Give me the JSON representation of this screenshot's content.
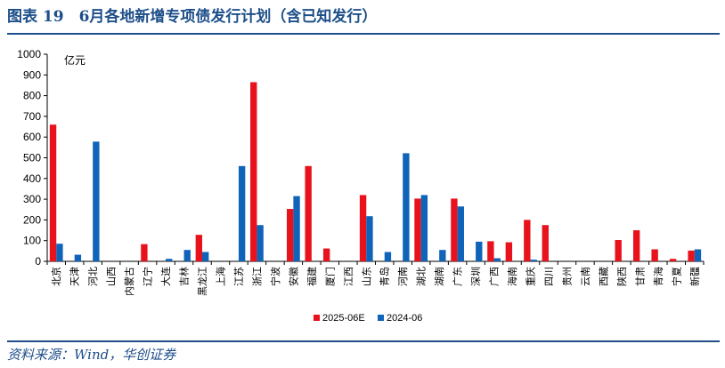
{
  "header": {
    "title": "图表 19　6月各地新增专项债发行计划（含已知发行）"
  },
  "footer": {
    "source": "资料来源：Wind，华创证券"
  },
  "colors": {
    "series_2025": "#e8121c",
    "series_2024": "#0f64b9",
    "rule": "#1d4e89"
  },
  "chart_data": {
    "type": "bar",
    "unit_label": "亿元",
    "ylim": [
      0,
      1000
    ],
    "yticks": [
      0,
      100,
      200,
      300,
      400,
      500,
      600,
      700,
      800,
      900,
      1000
    ],
    "grid": false,
    "legend_position": "bottom-center",
    "categories": [
      "北京",
      "天津",
      "河北",
      "山西",
      "内蒙古",
      "辽宁",
      "大连",
      "吉林",
      "黑龙江",
      "上海",
      "江苏",
      "浙江",
      "宁波",
      "安徽",
      "福建",
      "厦门",
      "江西",
      "山东",
      "青岛",
      "河南",
      "湖北",
      "湖南",
      "广东",
      "深圳",
      "广西",
      "海南",
      "重庆",
      "四川",
      "贵州",
      "云南",
      "西藏",
      "陕西",
      "甘肃",
      "青海",
      "宁夏",
      "新疆"
    ],
    "series": [
      {
        "name": "2025-06E",
        "color": "#e8121c",
        "values": [
          660,
          0,
          0,
          0,
          0,
          83,
          0,
          0,
          128,
          0,
          0,
          865,
          0,
          253,
          460,
          62,
          0,
          320,
          0,
          0,
          303,
          0,
          303,
          0,
          97,
          92,
          200,
          175,
          0,
          0,
          0,
          103,
          150,
          58,
          12,
          52
        ]
      },
      {
        "name": "2024-06",
        "color": "#0f64b9",
        "values": [
          85,
          32,
          578,
          0,
          0,
          0,
          12,
          55,
          45,
          0,
          460,
          175,
          0,
          315,
          0,
          0,
          0,
          218,
          45,
          522,
          320,
          55,
          265,
          95,
          15,
          0,
          8,
          0,
          0,
          0,
          0,
          0,
          0,
          0,
          0,
          58
        ]
      }
    ]
  }
}
